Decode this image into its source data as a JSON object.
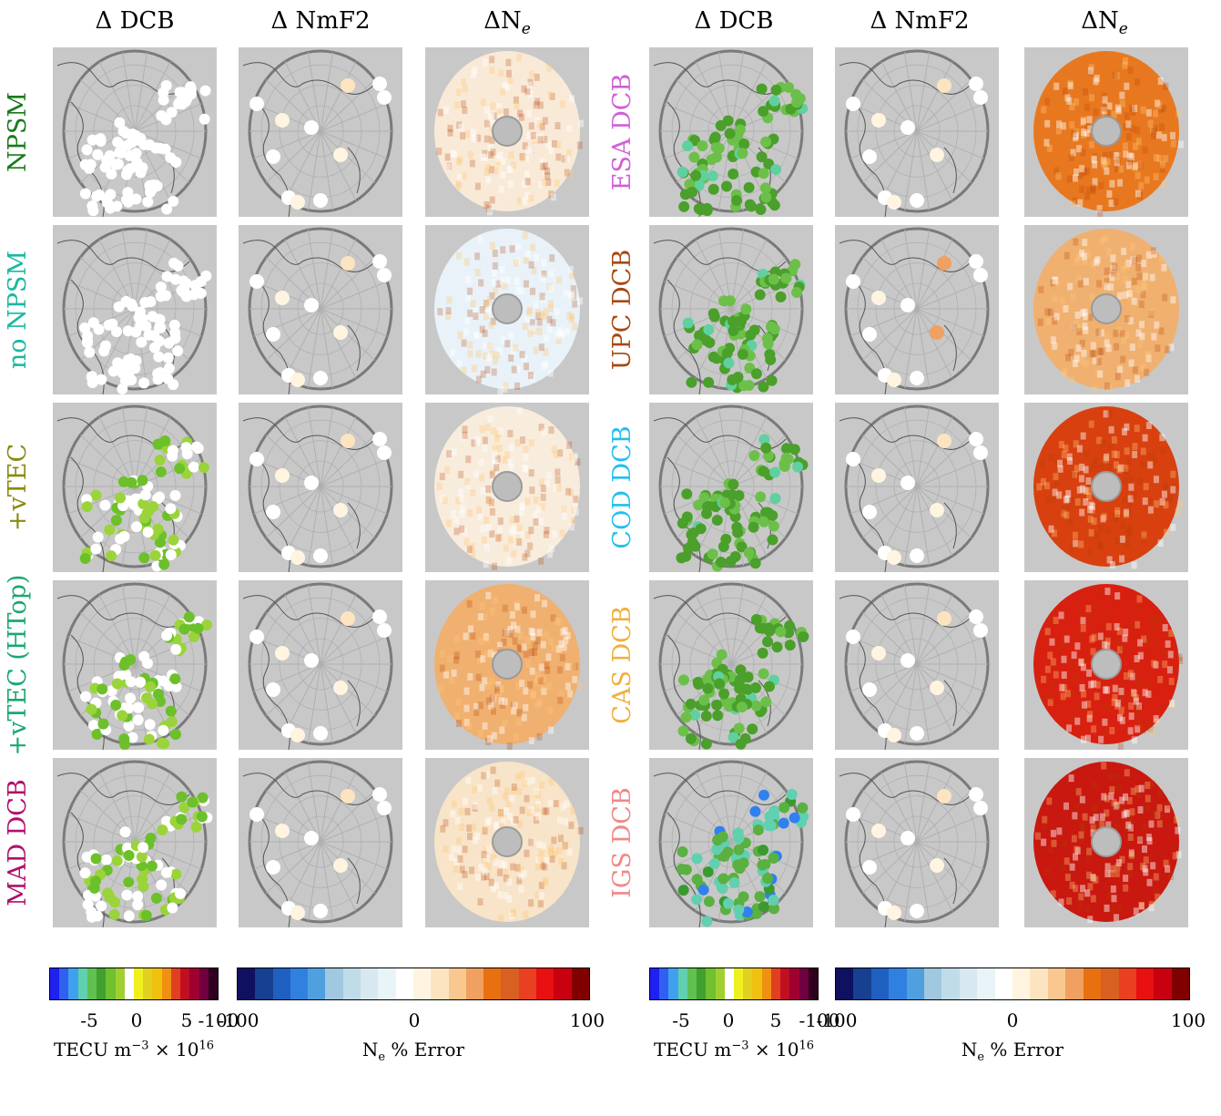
{
  "column_titles": [
    "Δ DCB",
    "Δ NmF2",
    "ΔN",
    "Δ DCB",
    "Δ NmF2",
    "ΔN"
  ],
  "column_title_subscript": "e",
  "row_labels_left": [
    {
      "text": "NPSM",
      "color": "#1a7a1a"
    },
    {
      "text": "no NPSM",
      "color": "#1ab8a0"
    },
    {
      "text": "+vTEC",
      "color": "#8a8a10"
    },
    {
      "text": "+vTEC (HTop)",
      "color": "#1aa870"
    },
    {
      "text": "MAD DCB",
      "color": "#b0106a"
    }
  ],
  "row_labels_right": [
    {
      "text": "ESA DCB",
      "color": "#d060d8"
    },
    {
      "text": "UPC DCB",
      "color": "#a84810"
    },
    {
      "text": "COD DCB",
      "color": "#20c0f0"
    },
    {
      "text": "CAS DCB",
      "color": "#f0b040"
    },
    {
      "text": "IGS DCB",
      "color": "#f08888"
    }
  ],
  "colorbars": [
    {
      "ticks": [
        "-5",
        "0",
        "5"
      ],
      "end_label": "-100",
      "label": "TECU m",
      "label_sup": "−3",
      "label_tail": " × 10",
      "label_exp": "16",
      "colors": [
        "#2020f0",
        "#3060f0",
        "#40a0f0",
        "#60d0b0",
        "#60c050",
        "#40a030",
        "#70c030",
        "#a0d030",
        "#ffffff",
        "#f0f020",
        "#e0d020",
        "#f0c010",
        "#f09010",
        "#e04020",
        "#c01020",
        "#a00030",
        "#700040",
        "#300020"
      ]
    },
    {
      "ticks": [
        "-100",
        "0",
        "100"
      ],
      "label": "N",
      "label_sub": "e",
      "label_tail": " % Error",
      "colors": [
        "#101060",
        "#184090",
        "#2060c0",
        "#3080e0",
        "#50a0e0",
        "#a0c8e0",
        "#c0dce8",
        "#d8e8f0",
        "#e8f4f8",
        "#ffffff",
        "#fff4e0",
        "#fde4c0",
        "#f8c890",
        "#f0a060",
        "#e87010",
        "#d86020",
        "#e84020",
        "#e81010",
        "#c80010",
        "#800000"
      ]
    },
    {
      "ticks": [
        "-5",
        "0",
        "5"
      ],
      "end_label": "-100",
      "label": "TECU m",
      "label_sup": "−3",
      "label_tail": " × 10",
      "label_exp": "16",
      "colors": [
        "#2020f0",
        "#3060f0",
        "#40a0f0",
        "#60d0b0",
        "#60c050",
        "#40a030",
        "#70c030",
        "#a0d030",
        "#ffffff",
        "#f0f020",
        "#e0d020",
        "#f0c010",
        "#f09010",
        "#e04020",
        "#c01020",
        "#a00030",
        "#700040",
        "#300020"
      ]
    },
    {
      "ticks": [
        "-100",
        "0",
        "100"
      ],
      "label": "N",
      "label_sub": "e",
      "label_tail": " % Error",
      "colors": [
        "#101060",
        "#184090",
        "#2060c0",
        "#3080e0",
        "#50a0e0",
        "#a0c8e0",
        "#c0dce8",
        "#d8e8f0",
        "#e8f4f8",
        "#ffffff",
        "#fff4e0",
        "#fde4c0",
        "#f8c890",
        "#f0a060",
        "#e87010",
        "#d86020",
        "#e84020",
        "#e81010",
        "#c80010",
        "#800000"
      ]
    }
  ],
  "panel_styles": {
    "dcb_left": [
      {
        "dots": "white"
      },
      {
        "dots": "white"
      },
      {
        "dots": "lightgreen"
      },
      {
        "dots": "lightgreen"
      },
      {
        "dots": "lightgreen"
      }
    ],
    "ne_left": [
      "#f9ead8",
      "#e8f2f8",
      "#f8ecdc",
      "#f0b070",
      "#f8e4c8"
    ],
    "dcb_right": [
      {
        "dots": "green"
      },
      {
        "dots": "green"
      },
      {
        "dots": "green"
      },
      {
        "dots": "green"
      },
      {
        "dots": "teal"
      }
    ],
    "ne_right": [
      "#e87820",
      "#f0b070",
      "#d84010",
      "#d82010",
      "#c81810"
    ]
  }
}
